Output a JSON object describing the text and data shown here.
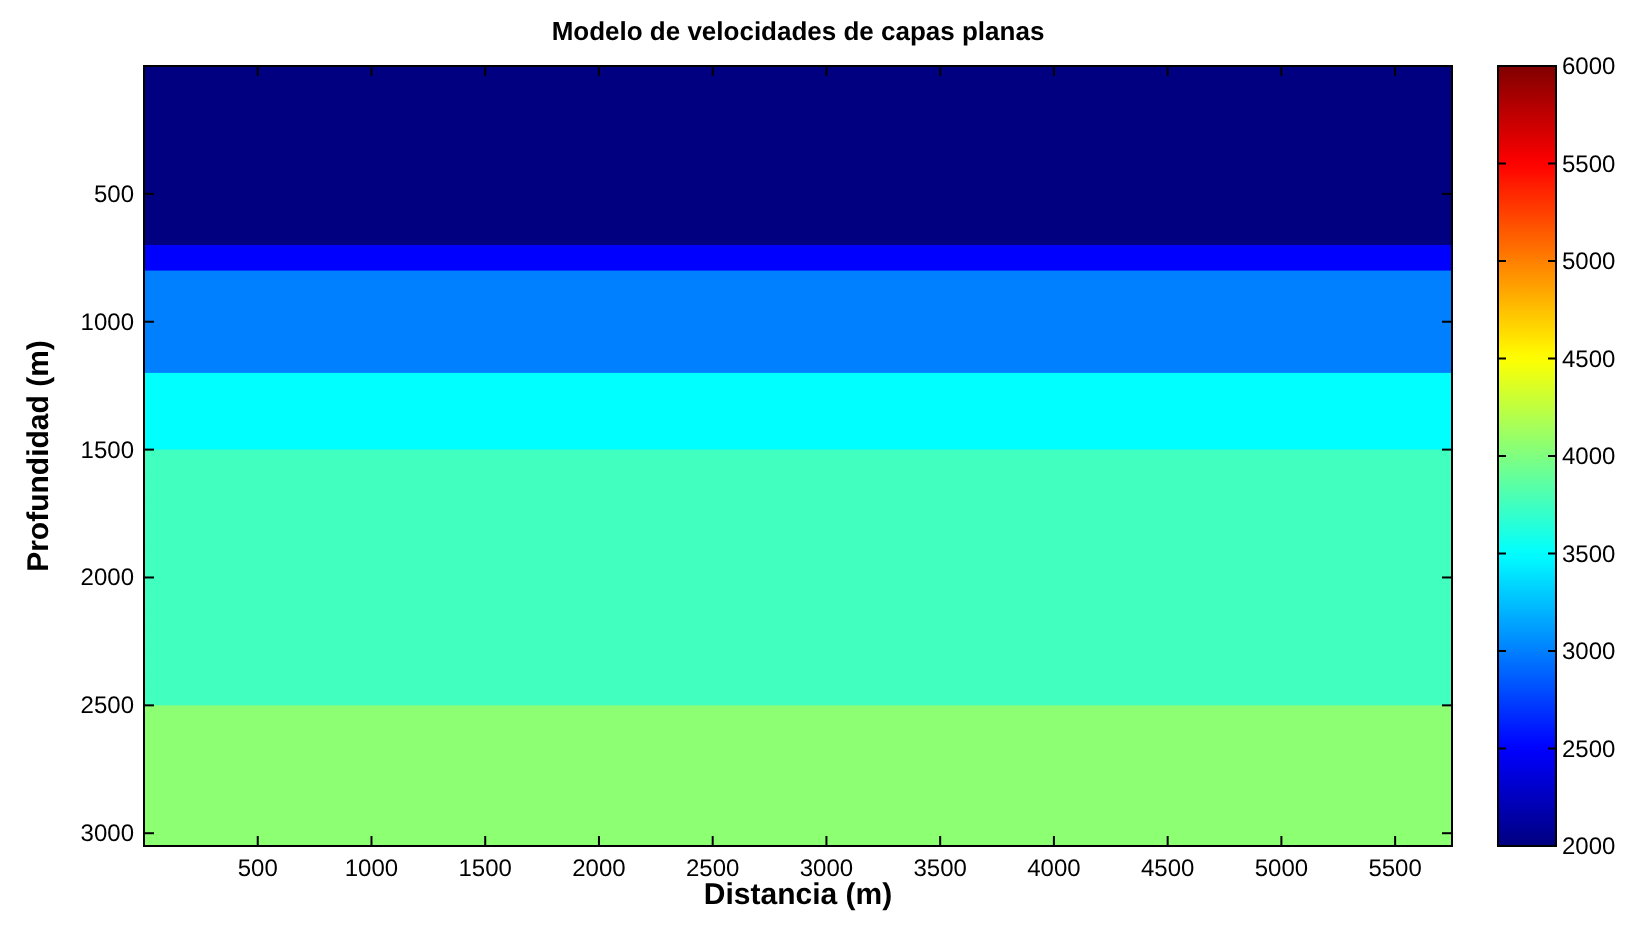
{
  "chart_data": {
    "type": "heatmap",
    "title": "Modelo de velocidades de capas planas",
    "xlabel": "Distancia (m)",
    "ylabel": "Profundidad (m)",
    "xlim": [
      0,
      5750
    ],
    "xticks": [
      500,
      1000,
      1500,
      2000,
      2500,
      3000,
      3500,
      4000,
      4500,
      5000,
      5500
    ],
    "ylim": [
      3050,
      0
    ],
    "yticks": [
      500,
      1000,
      1500,
      2000,
      2500,
      3000
    ],
    "clim": [
      2000,
      6000
    ],
    "cticks": [
      2000,
      2500,
      3000,
      3500,
      4000,
      4500,
      5000,
      5500,
      6000
    ],
    "cells": [
      [
        2000
      ],
      [
        2000
      ],
      [
        2000
      ],
      [
        2000
      ],
      [
        2000
      ],
      [
        2000
      ],
      [
        2000
      ],
      [
        2000
      ],
      [
        2000
      ],
      [
        2000
      ],
      [
        2000
      ],
      [
        2000
      ],
      [
        2000
      ],
      [
        2000
      ],
      [
        2500
      ],
      [
        2500
      ],
      [
        3000
      ],
      [
        3000
      ],
      [
        3000
      ],
      [
        3000
      ],
      [
        3000
      ],
      [
        3000
      ],
      [
        3000
      ],
      [
        3000
      ],
      [
        3500
      ],
      [
        3500
      ],
      [
        3500
      ],
      [
        3500
      ],
      [
        3500
      ],
      [
        3500
      ],
      [
        3750
      ],
      [
        3750
      ],
      [
        3750
      ],
      [
        3750
      ],
      [
        3750
      ],
      [
        3750
      ],
      [
        3750
      ],
      [
        3750
      ],
      [
        3750
      ],
      [
        3750
      ],
      [
        3750
      ],
      [
        3750
      ],
      [
        3750
      ],
      [
        3750
      ],
      [
        3750
      ],
      [
        3750
      ],
      [
        3750
      ],
      [
        3750
      ],
      [
        3750
      ],
      [
        3750
      ],
      [
        4050
      ],
      [
        4050
      ],
      [
        4050
      ],
      [
        4050
      ],
      [
        4050
      ],
      [
        4050
      ],
      [
        4050
      ],
      [
        4050
      ],
      [
        4050
      ],
      [
        4050
      ],
      [
        4050
      ]
    ]
  }
}
